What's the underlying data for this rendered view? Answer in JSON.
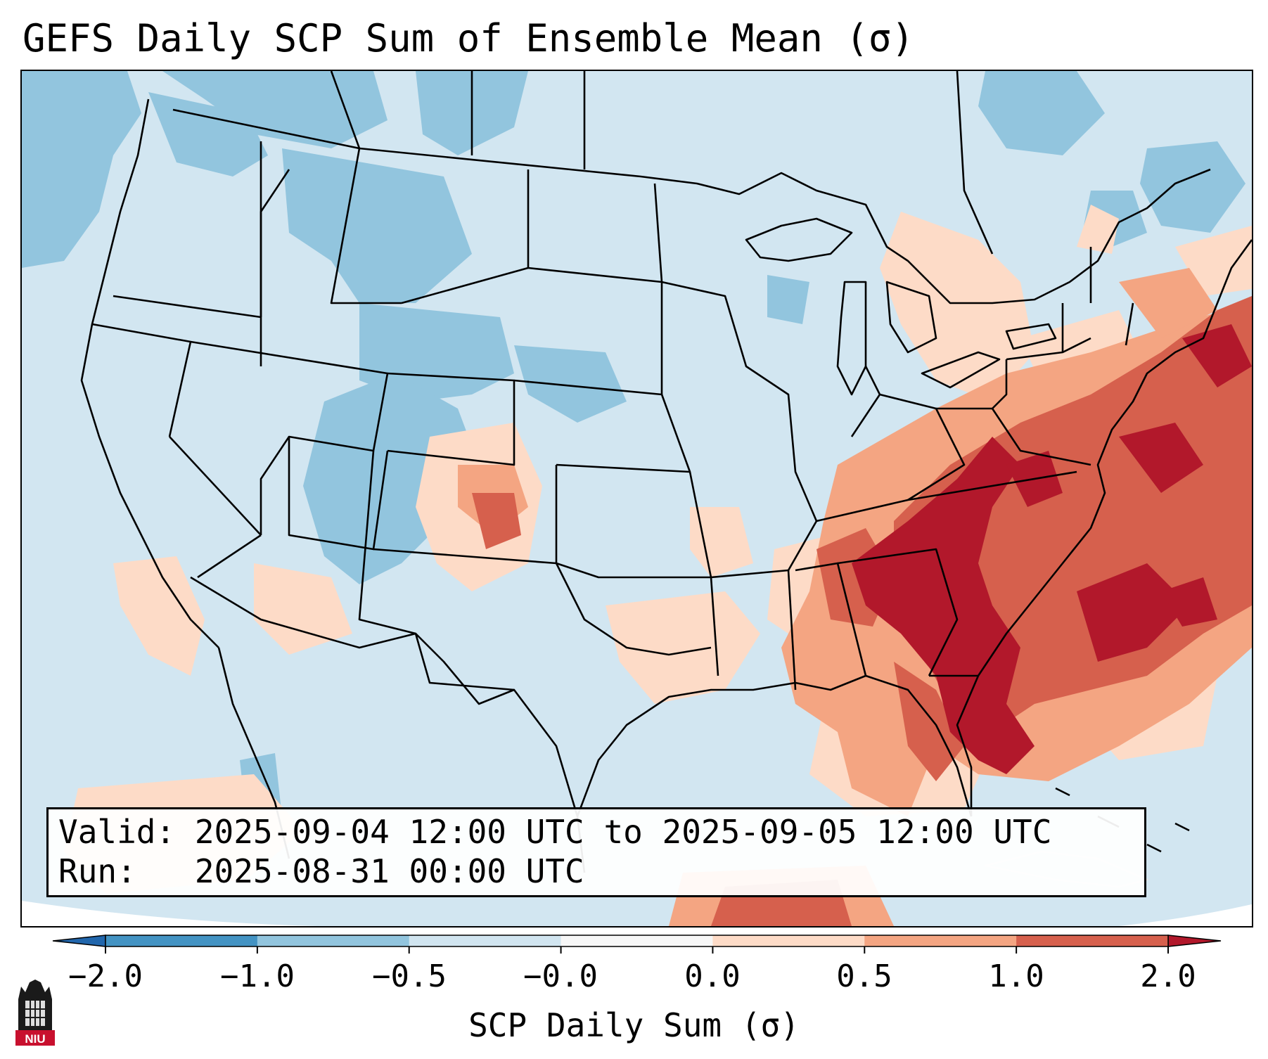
{
  "title": "GEFS Daily SCP Sum of Ensemble Mean (σ)",
  "info": {
    "valid_line": "Valid: 2025-09-04 12:00 UTC to 2025-09-05 12:00 UTC",
    "run_line": "Run:   2025-08-31 00:00 UTC"
  },
  "colorbar": {
    "label": "SCP Daily Sum (σ)",
    "ticks": [
      "−2.0",
      "−1.0",
      "−0.5",
      "−0.0",
      "0.0",
      "0.5",
      "1.0",
      "2.0"
    ],
    "colors": [
      "#4393c3",
      "#92c5de",
      "#d1e5f0",
      "#f7f7f7",
      "#fddbc7",
      "#f4a582",
      "#d6604d",
      "#b2182b"
    ],
    "extend_low_color": "#2166ac",
    "extend_high_color": "#b2182b"
  },
  "map": {
    "region": "Contiguous United States",
    "ocean_color": "#d2e6f1",
    "background_color": "#ffffff"
  },
  "logo": {
    "text": "NIU",
    "color": "#c8102e"
  }
}
